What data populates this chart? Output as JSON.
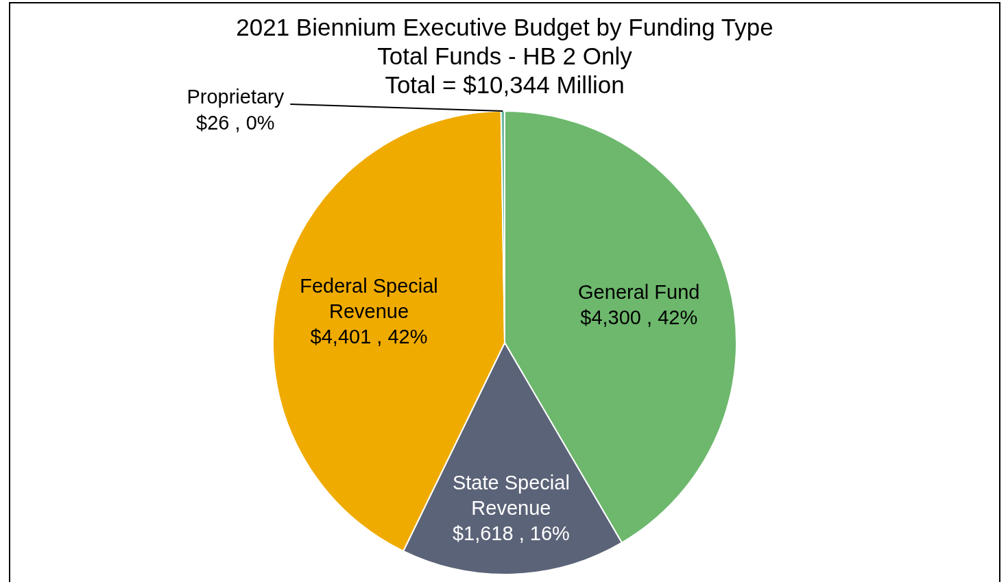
{
  "chart_data": {
    "type": "pie",
    "title": "2021 Biennium Executive Budget by Funding Type",
    "subtitle": "Total Funds - HB 2 Only\nTotal = $10,344 Million",
    "categories": [
      "General Fund",
      "State Special Revenue",
      "Federal Special Revenue",
      "Proprietary"
    ],
    "values": [
      4300,
      1618,
      4401,
      26
    ],
    "colors": [
      "#6db86d",
      "#5b6378",
      "#f0ab00",
      "#6db8a0"
    ],
    "value_labels": [
      "$4,300 , 42%",
      "$1,618 , 16%",
      "$4,401 , 42%",
      "$26 , 0%"
    ],
    "legend": false
  }
}
